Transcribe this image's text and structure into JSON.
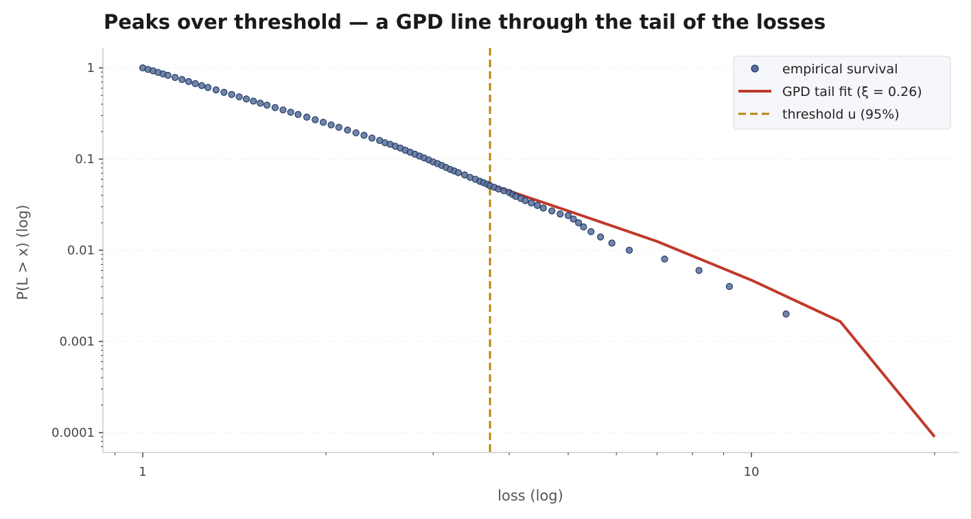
{
  "chart_data": {
    "type": "scatter",
    "title": "Peaks over threshold — a GPD line through the tail of the losses",
    "xlabel": "loss (log)",
    "ylabel": "P(L > x) (log)",
    "xscale": "log",
    "yscale": "log",
    "xlim": [
      0.9,
      20
    ],
    "ylim": [
      6e-05,
      1.7
    ],
    "grid": "horizontal-major",
    "legend_position": "top-right",
    "x_ticks": [
      {
        "value": 1,
        "label": "1"
      },
      {
        "value": 10,
        "label": "10"
      }
    ],
    "y_ticks": [
      {
        "value": 1,
        "label": "1"
      },
      {
        "value": 0.1,
        "label": "0.1"
      },
      {
        "value": 0.01,
        "label": "0.01"
      },
      {
        "value": 0.001,
        "label": "0.001"
      },
      {
        "value": 0.0001,
        "label": "0.0001"
      }
    ],
    "series": [
      {
        "name": "empirical survival",
        "kind": "points",
        "color": "#1f3b6b",
        "points": [
          [
            1.0,
            1.0
          ],
          [
            1.02,
            0.962
          ],
          [
            1.04,
            0.926
          ],
          [
            1.06,
            0.891
          ],
          [
            1.08,
            0.859
          ],
          [
            1.1,
            0.828
          ],
          [
            1.13,
            0.785
          ],
          [
            1.16,
            0.745
          ],
          [
            1.19,
            0.707
          ],
          [
            1.22,
            0.672
          ],
          [
            1.25,
            0.64
          ],
          [
            1.28,
            0.61
          ],
          [
            1.32,
            0.574
          ],
          [
            1.36,
            0.54
          ],
          [
            1.4,
            0.51
          ],
          [
            1.44,
            0.482
          ],
          [
            1.48,
            0.456
          ],
          [
            1.52,
            0.432
          ],
          [
            1.56,
            0.41
          ],
          [
            1.6,
            0.39
          ],
          [
            1.65,
            0.367
          ],
          [
            1.7,
            0.346
          ],
          [
            1.75,
            0.326
          ],
          [
            1.8,
            0.308
          ],
          [
            1.86,
            0.288
          ],
          [
            1.92,
            0.27
          ],
          [
            1.98,
            0.253
          ],
          [
            2.04,
            0.237
          ],
          [
            2.1,
            0.223
          ],
          [
            2.17,
            0.208
          ],
          [
            2.24,
            0.194
          ],
          [
            2.31,
            0.182
          ],
          [
            2.38,
            0.17
          ],
          [
            2.45,
            0.16
          ],
          [
            2.5,
            0.151
          ],
          [
            2.55,
            0.145
          ],
          [
            2.6,
            0.138
          ],
          [
            2.65,
            0.132
          ],
          [
            2.7,
            0.125
          ],
          [
            2.75,
            0.119
          ],
          [
            2.8,
            0.113
          ],
          [
            2.85,
            0.108
          ],
          [
            2.9,
            0.103
          ],
          [
            2.95,
            0.098
          ],
          [
            3.0,
            0.093
          ],
          [
            3.05,
            0.089
          ],
          [
            3.1,
            0.085
          ],
          [
            3.15,
            0.081
          ],
          [
            3.2,
            0.077
          ],
          [
            3.25,
            0.074
          ],
          [
            3.3,
            0.071
          ],
          [
            3.38,
            0.067
          ],
          [
            3.45,
            0.063
          ],
          [
            3.52,
            0.06
          ],
          [
            3.58,
            0.057
          ],
          [
            3.63,
            0.055
          ],
          [
            3.68,
            0.053
          ],
          [
            3.72,
            0.051
          ],
          [
            3.78,
            0.049
          ],
          [
            3.84,
            0.047
          ],
          [
            3.92,
            0.045
          ],
          [
            4.0,
            0.043
          ],
          [
            4.05,
            0.041
          ],
          [
            4.1,
            0.039
          ],
          [
            4.18,
            0.037
          ],
          [
            4.25,
            0.035
          ],
          [
            4.35,
            0.033
          ],
          [
            4.45,
            0.031
          ],
          [
            4.55,
            0.029
          ],
          [
            4.7,
            0.027
          ],
          [
            4.85,
            0.025
          ],
          [
            5.0,
            0.024
          ],
          [
            5.1,
            0.022
          ],
          [
            5.2,
            0.02
          ],
          [
            5.3,
            0.018
          ],
          [
            5.45,
            0.016
          ],
          [
            5.65,
            0.014
          ],
          [
            5.9,
            0.012
          ],
          [
            6.3,
            0.01
          ],
          [
            7.2,
            0.008
          ],
          [
            8.2,
            0.006
          ],
          [
            9.2,
            0.004
          ],
          [
            11.4,
            0.002
          ]
        ]
      },
      {
        "name": "GPD tail fit (ξ = 0.26)",
        "kind": "line",
        "color": "#c0392b",
        "points": [
          [
            3.8,
            0.05
          ],
          [
            5.0,
            0.027
          ],
          [
            7.0,
            0.0125
          ],
          [
            10.0,
            0.0047
          ],
          [
            14.0,
            0.00165
          ],
          [
            20.0,
            9e-05
          ]
        ]
      },
      {
        "name": "threshold u (95%)",
        "kind": "vline",
        "color": "#b8860b",
        "x": 3.72
      }
    ]
  }
}
